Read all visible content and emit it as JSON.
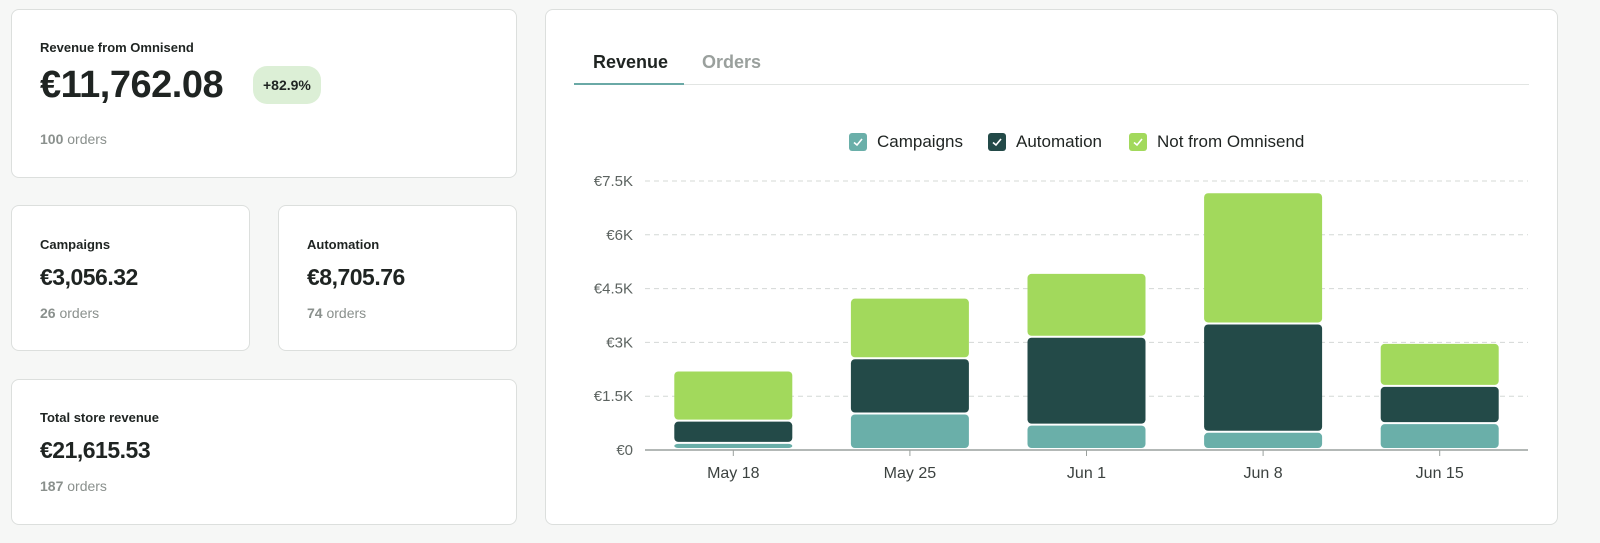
{
  "summary": {
    "omnisend": {
      "label": "Revenue from Omnisend",
      "value": "€11,762.08",
      "change": "+82.9%",
      "orders_count": "100",
      "orders_word": "orders"
    },
    "campaigns": {
      "label": "Campaigns",
      "value": "€3,056.32",
      "orders_count": "26",
      "orders_word": "orders"
    },
    "automation": {
      "label": "Automation",
      "value": "€8,705.76",
      "orders_count": "74",
      "orders_word": "orders"
    },
    "total": {
      "label": "Total store revenue",
      "value": "€21,615.53",
      "orders_count": "187",
      "orders_word": "orders"
    }
  },
  "tabs": [
    {
      "label": "Revenue",
      "active": true
    },
    {
      "label": "Orders",
      "active": false
    }
  ],
  "legend": [
    {
      "label": "Campaigns",
      "color": "#6aafa9"
    },
    {
      "label": "Automation",
      "color": "#234a48"
    },
    {
      "label": "Not from Omnisend",
      "color": "#a2d95c"
    }
  ],
  "chart_data": {
    "type": "bar",
    "stacked": true,
    "categories": [
      "May 18",
      "May 25",
      "Jun 1",
      "Jun 8",
      "Jun 15"
    ],
    "series": [
      {
        "name": "Campaigns",
        "color": "#6aafa9",
        "values": [
          170,
          990,
          680,
          480,
          720
        ]
      },
      {
        "name": "Automation",
        "color": "#234a48",
        "values": [
          620,
          1540,
          2450,
          3020,
          1040
        ]
      },
      {
        "name": "Not from Omnisend",
        "color": "#a2d95c",
        "values": [
          1400,
          1690,
          1780,
          3660,
          1200
        ]
      }
    ],
    "yticks": [
      0,
      1500,
      3000,
      4500,
      6000,
      7500
    ],
    "ytick_labels": [
      "€0",
      "€1.5K",
      "€3K",
      "€4.5K",
      "€6K",
      "€7.5K"
    ],
    "ylim": [
      0,
      7500
    ],
    "grid": true,
    "legend_position": "top-center"
  }
}
